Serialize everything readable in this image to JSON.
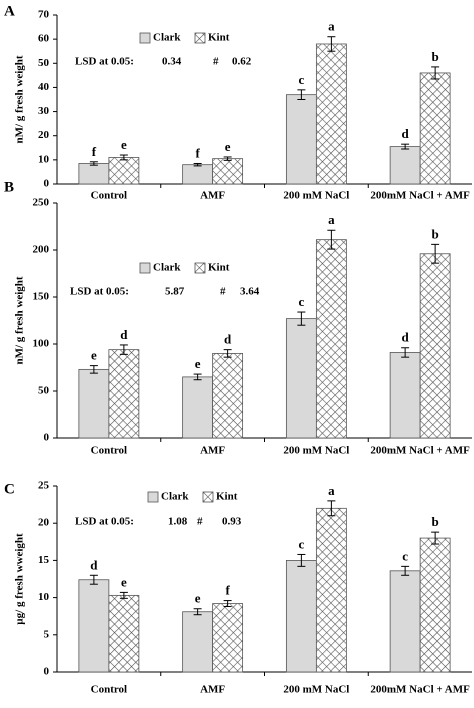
{
  "chart_data": [
    {
      "type": "bar",
      "panel": "A",
      "ylabel": "nM/ g fresh weight",
      "categories": [
        "Control",
        "AMF",
        "200 mM NaCl",
        "200mM NaCl + AMF"
      ],
      "series": [
        {
          "name": "Clark",
          "color": "#d9d9d9",
          "values": [
            8.5,
            8,
            37,
            15.5
          ],
          "errors": [
            0.7,
            0.5,
            2,
            1
          ],
          "letters": [
            "f",
            "f",
            "c",
            "d"
          ]
        },
        {
          "name": "Kint",
          "color": "#ffffff",
          "pattern": "crosshatch",
          "values": [
            11,
            10.5,
            58,
            46
          ],
          "errors": [
            1,
            0.7,
            3,
            2.5
          ],
          "letters": [
            "e",
            "e",
            "a",
            "b"
          ]
        }
      ],
      "lsd_label": "LSD at 0.05:",
      "lsd_clark": "0.34",
      "lsd_sep": "#",
      "lsd_kint": "0.62",
      "ylim": [
        0,
        70
      ],
      "yticks": [
        0,
        10,
        20,
        30,
        40,
        50,
        60,
        70
      ]
    },
    {
      "type": "bar",
      "panel": "B",
      "ylabel": "nM/ g fresh weight",
      "categories": [
        "Control",
        "AMF",
        "200 mM NaCl",
        "200mM NaCl + AMF"
      ],
      "series": [
        {
          "name": "Clark",
          "color": "#d9d9d9",
          "values": [
            73,
            65,
            127,
            91
          ],
          "errors": [
            4,
            3,
            7,
            5
          ],
          "letters": [
            "e",
            "e",
            "c",
            "d"
          ]
        },
        {
          "name": "Kint",
          "color": "#ffffff",
          "pattern": "crosshatch",
          "values": [
            94,
            90,
            211,
            196
          ],
          "errors": [
            5,
            4,
            10,
            10
          ],
          "letters": [
            "d",
            "d",
            "a",
            "b"
          ]
        }
      ],
      "lsd_label": "LSD at 0.05:",
      "lsd_clark": "5.87",
      "lsd_sep": "#",
      "lsd_kint": "3.64",
      "ylim": [
        0,
        250
      ],
      "yticks": [
        0,
        50,
        100,
        150,
        200,
        250
      ]
    },
    {
      "type": "bar",
      "panel": "C",
      "ylabel": "µg/ g fresh wweight",
      "categories": [
        "Control",
        "AMF",
        "200 mM NaCl",
        "200mM NaCl + AMF"
      ],
      "series": [
        {
          "name": "Clark",
          "color": "#d9d9d9",
          "values": [
            12.4,
            8.1,
            15,
            13.6
          ],
          "errors": [
            0.6,
            0.4,
            0.8,
            0.6
          ],
          "letters": [
            "d",
            "e",
            "c",
            "c"
          ]
        },
        {
          "name": "Kint",
          "color": "#ffffff",
          "pattern": "crosshatch",
          "values": [
            10.3,
            9.2,
            22,
            18
          ],
          "errors": [
            0.4,
            0.4,
            1,
            0.8
          ],
          "letters": [
            "e",
            "f",
            "a",
            "b"
          ]
        }
      ],
      "lsd_label": "LSD at 0.05:",
      "lsd_clark": "1.08",
      "lsd_sep": "#",
      "lsd_kint": "0.93",
      "ylim": [
        0,
        25
      ],
      "yticks": [
        0,
        5,
        10,
        15,
        20,
        25
      ]
    }
  ]
}
